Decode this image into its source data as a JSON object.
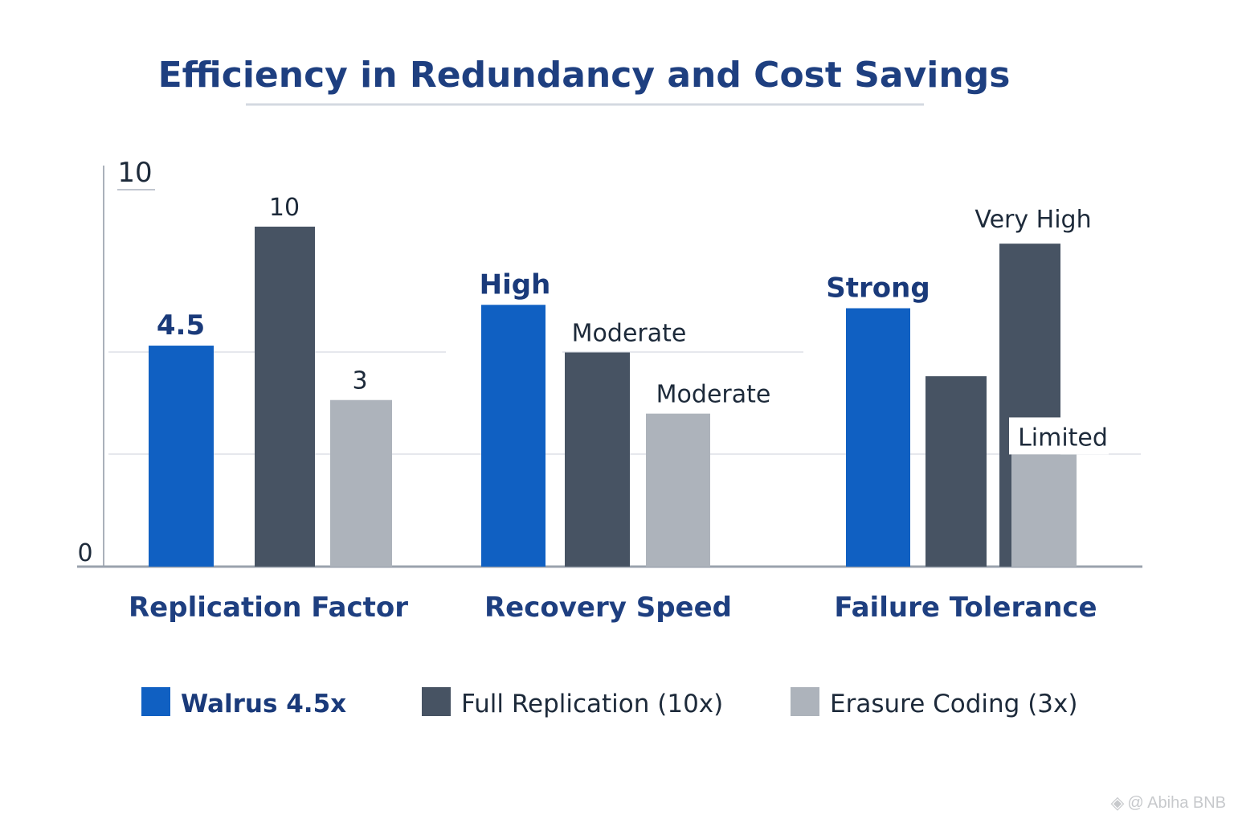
{
  "chart_data": {
    "type": "bar",
    "title": "Efficiency in Redundancy and Cost Savings",
    "xlabel": "",
    "ylabel": "",
    "ylim": [
      0,
      10
    ],
    "yticks": [
      "0",
      "10"
    ],
    "grid": true,
    "legend_position": "bottom",
    "categories": [
      "Replication Factor",
      "Recovery Speed",
      "Failure Tolerance"
    ],
    "series": [
      {
        "name": "Walrus 4.5x",
        "color": "#1060c2",
        "values": [
          6.5,
          7.7,
          7.6
        ],
        "labels": [
          "4.5",
          "High",
          "Strong"
        ]
      },
      {
        "name": "Full Replication (10x)",
        "color": "#475363",
        "values": [
          10,
          6.3,
          5.6
        ],
        "labels": [
          "10",
          "Moderate",
          ""
        ]
      },
      {
        "name": "Erasure Coding (3x)",
        "color": "#adb3bb",
        "values": [
          4.9,
          4.5,
          3.3
        ],
        "labels": [
          "3",
          "Moderate",
          "Limited"
        ]
      }
    ],
    "extra_bars": [
      {
        "category": "Failure Tolerance",
        "color": "#475363",
        "value": 9.5,
        "label": "Very High"
      }
    ]
  },
  "watermark": "@ Abiha BNB"
}
